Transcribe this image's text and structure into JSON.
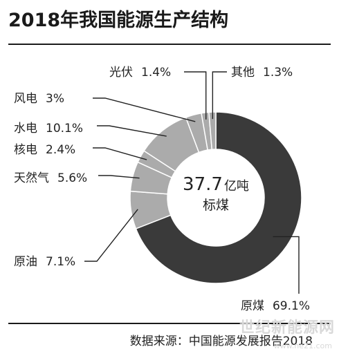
{
  "title": "2018年我国能源生产结构",
  "source": "数据来源：中国能源发展报告2018",
  "watermark": "世纪新能源网",
  "watermark_url": "www.ne21.com",
  "colors": {
    "dark": "#3a3a3a",
    "light": "#ababab",
    "text": "#222222",
    "line": "#222222"
  },
  "chart_data": {
    "type": "pie",
    "title": "2018年我国能源生产结构",
    "center_value": "37.7",
    "center_unit": "亿吨",
    "center_label": "标煤",
    "unit": "%",
    "slices": [
      {
        "name": "原煤",
        "value": 69.1,
        "label": "原煤",
        "value_label": "69.1%",
        "color": "#3a3a3a"
      },
      {
        "name": "原油",
        "value": 7.1,
        "label": "原油",
        "value_label": "7.1%",
        "color": "#ababab"
      },
      {
        "name": "天然气",
        "value": 5.6,
        "label": "天然气",
        "value_label": "5.6%",
        "color": "#ababab"
      },
      {
        "name": "核电",
        "value": 2.4,
        "label": "核电",
        "value_label": "2.4%",
        "color": "#ababab"
      },
      {
        "name": "水电",
        "value": 10.1,
        "label": "水电",
        "value_label": "10.1%",
        "color": "#ababab"
      },
      {
        "name": "风电",
        "value": 3.0,
        "label": "风电",
        "value_label": "3%",
        "color": "#ababab"
      },
      {
        "name": "光伏",
        "value": 1.4,
        "label": "光伏",
        "value_label": "1.4%",
        "color": "#ababab"
      },
      {
        "name": "其他",
        "value": 1.3,
        "label": "其他",
        "value_label": "1.3%",
        "color": "#ababab"
      }
    ]
  }
}
